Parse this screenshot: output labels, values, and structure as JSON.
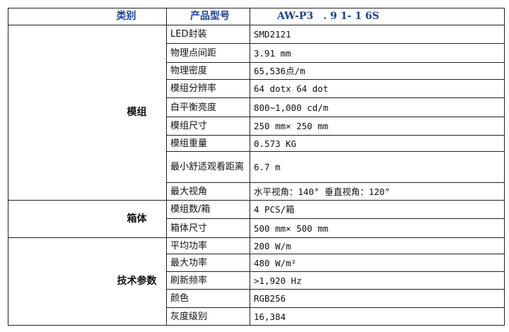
{
  "header": {
    "category": "类别",
    "model_label": "产品型号",
    "model_value": "AW-P3　. 9 1- 1 6S"
  },
  "groups": [
    {
      "name": "模组",
      "rows": [
        {
          "label": "LED封装",
          "value": "SMD2121"
        },
        {
          "label": "物理点间距",
          "value": "3.91 mm"
        },
        {
          "label": "物理密度",
          "value": "65,536点/m"
        },
        {
          "label": "模组分辨率",
          "value": "64 dotx 64 dot"
        },
        {
          "label": "白平衡亮度",
          "value": "800~1,000 cd/m"
        },
        {
          "label": "模组尺寸",
          "value": "250 mm× 250 mm"
        },
        {
          "label": "模组重量",
          "value": "0.573 KG"
        },
        {
          "label": "最小舒适观看距离",
          "value": "6.7 m"
        },
        {
          "label": "最大视角",
          "value": "水平视角：140° 垂直视角：120°"
        }
      ]
    },
    {
      "name": "箱体",
      "rows": [
        {
          "label": "模组数/箱",
          "value": "4 PCS/箱"
        },
        {
          "label": "箱体尺寸",
          "value": "500 mm× 500 mm"
        }
      ]
    },
    {
      "name": "技术参数",
      "rows": [
        {
          "label": "平均功率",
          "value": "200 W/m"
        },
        {
          "label": "最大功率",
          "value": "480   W/m²"
        },
        {
          "label": "刷新频率",
          "value": ">1,920 Hz"
        },
        {
          "label": "颜色",
          "value": "RGB256"
        },
        {
          "label": "灰度级别",
          "value": "16,384"
        }
      ]
    }
  ]
}
